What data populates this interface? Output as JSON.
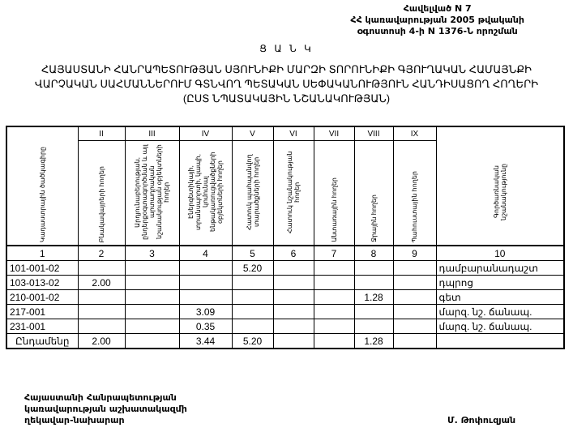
{
  "annex": [
    "Հավելված N 7",
    "ՀՀ կառավարության 2005 թվականի",
    "օգոստոսի 4-ի N 1376-Ն որոշման"
  ],
  "title": "Ց Ա Ն Կ",
  "subtitle": [
    "ՀԱՅԱՍՏԱՆԻ ՀԱՆՐԱՊԵՏՈՒԹՅԱՆ ՍՅՈՒՆԻՔԻ ՄԱՐԶԻ ՏՈՐՈՒՆԻՔԻ ԳՅՈՒՂԱԿԱՆ ՀԱՄԱՅՆՔԻ",
    "ՎԱՐՉԱԿԱՆ ՍԱՀՄԱՆՆԵՐՈՒՄ ԳՏՆՎՈՂ ՊԵՏԱԿԱՆ ՍԵՓԱԿԱՆՈՒԹՅՈՒՆ ՀԱՆԴԻՍԱՑՈՂ ՀՈՂԵՐԻ",
    "(ԸՍՏ ՆՊԱՏԱԿԱՅԻՆ ՆՇԱՆԱԿՈՒԹՅԱՆ)"
  ],
  "table": {
    "roman": [
      "II",
      "III",
      "IV",
      "V",
      "VI",
      "VII",
      "VIII",
      "IX"
    ],
    "headers": [
      "Կադաստրային ծածկագիրը",
      "Բնակավայրերի հողեր",
      "Արդյունաբերության, ընդերքօգտագործման և այլ արտադրական նշանակության օբյեկտների հողեր",
      "Էներգետիկայի, տրանսպորտի, կապի, կոմունալ ենթակառուցվածքների օբյեկտների հողեր",
      "Հատուկ պահպանվող տարածքների հողեր",
      "Հատուկ նշանակության հողեր",
      "Անտառային հողեր",
      "Ջրային հողեր",
      "Պահուստային հողեր",
      "Գործառնական նշանակությունը"
    ],
    "numbers": [
      "1",
      "2",
      "3",
      "4",
      "5",
      "6",
      "7",
      "8",
      "9",
      "10"
    ],
    "rows": [
      [
        "101-001-02",
        "",
        "",
        "",
        "5.20",
        "",
        "",
        "",
        "",
        "դամբարանադաշտ"
      ],
      [
        "103-013-02",
        "2.00",
        "",
        "",
        "",
        "",
        "",
        "",
        "",
        "դպրոց"
      ],
      [
        "210-001-02",
        "",
        "",
        "",
        "",
        "",
        "",
        "1.28",
        "",
        "գետ"
      ],
      [
        "217-001",
        "",
        "",
        "3.09",
        "",
        "",
        "",
        "",
        "",
        "մարզ. նշ. ճանապ."
      ],
      [
        "231-001",
        "",
        "",
        "0.35",
        "",
        "",
        "",
        "",
        "",
        "մարզ. նշ. ճանապ."
      ]
    ],
    "total": [
      "Ընդամենը",
      "2.00",
      "",
      "3.44",
      "5.20",
      "",
      "",
      "1.28",
      "",
      ""
    ]
  },
  "footer": [
    "Հայաստանի Հանրապետության",
    "կառավարության աշխատակազմի",
    "ղեկավար-նախարար"
  ],
  "signatory": "Մ. Թոփուզյան"
}
